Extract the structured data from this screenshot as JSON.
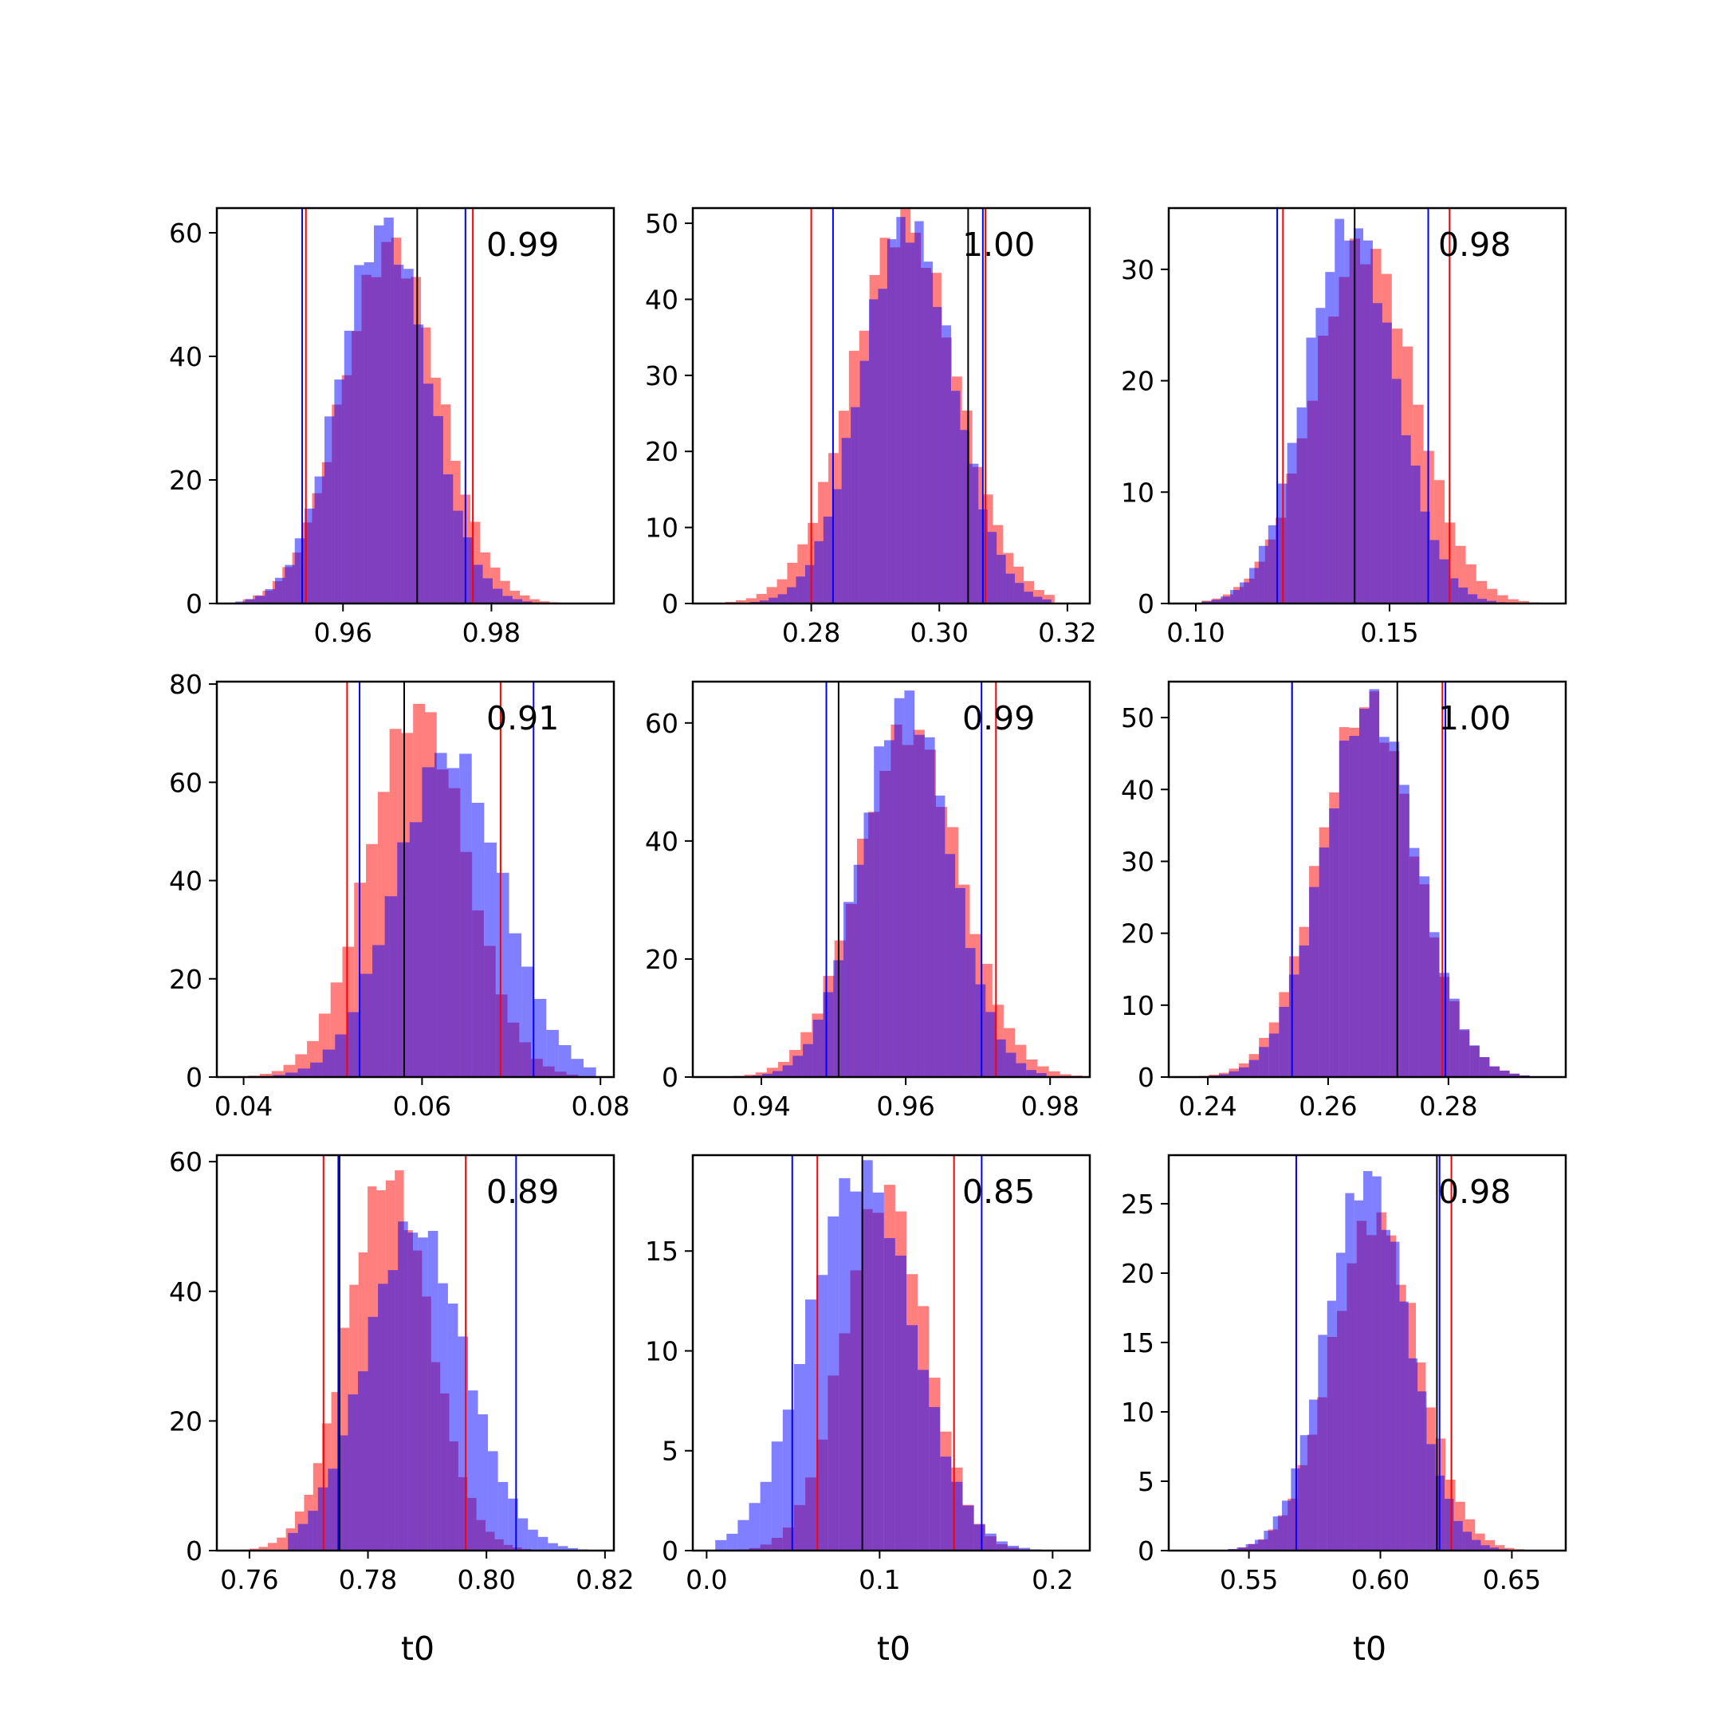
{
  "chart_data": {
    "type": "grid",
    "layout": {
      "rows": 3,
      "cols": 3
    },
    "xlabel": "t0",
    "colors": {
      "series_red": "#ff0000",
      "series_blue": "#0000ff",
      "overlap": "#7f3fbf",
      "truth": "#000000",
      "axes": "#000000"
    },
    "panels": [
      {
        "type": "histogram",
        "annotation": "0.99",
        "xlim": [
          0.943,
          0.9965
        ],
        "ylim": [
          0,
          64
        ],
        "xticks": [
          0.96,
          0.98
        ],
        "xtick_labels": [
          "0.96",
          "0.98"
        ],
        "yticks": [
          0,
          20,
          40,
          60
        ],
        "ytick_labels": [
          "0",
          "20",
          "40",
          "60"
        ],
        "vlines": {
          "red": [
            0.955,
            0.9775
          ],
          "blue": [
            0.9545,
            0.9765
          ],
          "black": [
            0.97
          ]
        },
        "series": [
          {
            "name": "red",
            "color": "#ff0000",
            "mean": 0.9665,
            "sd": 0.0065,
            "peak": 58,
            "bins": [
              0.9465,
              0.9905,
              33
            ]
          },
          {
            "name": "blue",
            "color": "#0000ff",
            "mean": 0.9655,
            "sd": 0.006,
            "peak": 61,
            "bins": [
              0.9455,
              0.9895,
              33
            ]
          }
        ]
      },
      {
        "type": "histogram",
        "annotation": "1.00",
        "xlim": [
          0.2615,
          0.3235
        ],
        "ylim": [
          0,
          52
        ],
        "xticks": [
          0.28,
          0.3,
          0.32
        ],
        "xtick_labels": [
          "0.28",
          "0.30",
          "0.32"
        ],
        "yticks": [
          0,
          10,
          20,
          30,
          40,
          50
        ],
        "ytick_labels": [
          "0",
          "10",
          "20",
          "30",
          "40",
          "50"
        ],
        "vlines": {
          "red": [
            0.28,
            0.3072
          ],
          "blue": [
            0.2834,
            0.3068
          ],
          "black": [
            0.3045
          ]
        },
        "series": [
          {
            "name": "red",
            "color": "#ff0000",
            "mean": 0.2945,
            "sd": 0.0082,
            "peak": 50,
            "bins": [
              0.265,
              0.318,
              33
            ]
          },
          {
            "name": "blue",
            "color": "#0000ff",
            "mean": 0.295,
            "sd": 0.0072,
            "peak": 50,
            "bins": [
              0.2705,
              0.3175,
              33
            ]
          }
        ]
      },
      {
        "type": "histogram",
        "annotation": "0.98",
        "xlim": [
          0.093,
          0.1955
        ],
        "ylim": [
          0,
          35.5
        ],
        "xticks": [
          0.1,
          0.15
        ],
        "xtick_labels": [
          "0.10",
          "0.15"
        ],
        "yticks": [
          0,
          10,
          20,
          30
        ],
        "ytick_labels": [
          "0",
          "10",
          "20",
          "30"
        ],
        "vlines": {
          "red": [
            0.1225,
            0.1655
          ],
          "blue": [
            0.121,
            0.16
          ],
          "black": [
            0.141
          ]
        },
        "series": [
          {
            "name": "red",
            "color": "#ff0000",
            "mean": 0.1435,
            "sd": 0.013,
            "peak": 32,
            "bins": [
              0.1015,
              0.1915,
              33
            ]
          },
          {
            "name": "blue",
            "color": "#0000ff",
            "mean": 0.14,
            "sd": 0.0115,
            "peak": 34,
            "bins": [
              0.1015,
              0.1825,
              33
            ]
          }
        ]
      },
      {
        "type": "histogram",
        "annotation": "0.91",
        "xlim": [
          0.037,
          0.0815
        ],
        "ylim": [
          0,
          80.5
        ],
        "xticks": [
          0.04,
          0.06,
          0.08
        ],
        "xtick_labels": [
          "0.04",
          "0.06",
          "0.08"
        ],
        "yticks": [
          0,
          20,
          40,
          60,
          80
        ],
        "ytick_labels": [
          "0",
          "20",
          "40",
          "60",
          "80"
        ],
        "vlines": {
          "red": [
            0.0516,
            0.0688
          ],
          "blue": [
            0.053,
            0.0725
          ],
          "black": [
            0.058
          ]
        },
        "series": [
          {
            "name": "red",
            "color": "#ff0000",
            "mean": 0.0595,
            "sd": 0.0055,
            "peak": 75,
            "bins": [
              0.0405,
              0.0775,
              28
            ]
          },
          {
            "name": "blue",
            "color": "#0000ff",
            "mean": 0.063,
            "sd": 0.006,
            "peak": 66,
            "bins": [
              0.0405,
              0.0795,
              28
            ]
          }
        ]
      },
      {
        "type": "histogram",
        "annotation": "0.99",
        "xlim": [
          0.9305,
          0.9855
        ],
        "ylim": [
          0,
          67
        ],
        "xticks": [
          0.94,
          0.96,
          0.98
        ],
        "xtick_labels": [
          "0.94",
          "0.96",
          "0.98"
        ],
        "yticks": [
          0,
          20,
          40,
          60
        ],
        "ytick_labels": [
          "0",
          "20",
          "40",
          "60"
        ],
        "vlines": {
          "red": [
            0.949,
            0.9725
          ],
          "blue": [
            0.949,
            0.9705
          ],
          "black": [
            0.9507
          ]
        },
        "series": [
          {
            "name": "red",
            "color": "#ff0000",
            "mean": 0.9605,
            "sd": 0.007,
            "peak": 59,
            "bins": [
              0.9345,
              0.9845,
              32
            ]
          },
          {
            "name": "blue",
            "color": "#0000ff",
            "mean": 0.96,
            "sd": 0.0062,
            "peak": 64,
            "bins": [
              0.9345,
              0.9795,
              32
            ]
          }
        ]
      },
      {
        "type": "histogram",
        "annotation": "1.00",
        "xlim": [
          0.2335,
          0.2995
        ],
        "ylim": [
          0,
          55
        ],
        "xticks": [
          0.24,
          0.26,
          0.28
        ],
        "xtick_labels": [
          "0.24",
          "0.26",
          "0.28"
        ],
        "yticks": [
          0,
          10,
          20,
          30,
          40,
          50
        ],
        "ytick_labels": [
          "0",
          "10",
          "20",
          "30",
          "40",
          "50"
        ],
        "vlines": {
          "red": [
            0.254,
            0.279
          ],
          "blue": [
            0.254,
            0.2795
          ],
          "black": [
            0.2715
          ]
        },
        "series": [
          {
            "name": "red",
            "color": "#ff0000",
            "mean": 0.2665,
            "sd": 0.008,
            "peak": 52,
            "bins": [
              0.2385,
              0.2935,
              33
            ]
          },
          {
            "name": "blue",
            "color": "#0000ff",
            "mean": 0.267,
            "sd": 0.0078,
            "peak": 52,
            "bins": [
              0.2385,
              0.2935,
              33
            ]
          }
        ]
      },
      {
        "type": "histogram",
        "annotation": "0.89",
        "xlim": [
          0.7545,
          0.8215
        ],
        "ylim": [
          0,
          61
        ],
        "xticks": [
          0.76,
          0.78,
          0.8,
          0.82
        ],
        "xtick_labels": [
          "0.76",
          "0.78",
          "0.80",
          "0.82"
        ],
        "yticks": [
          0,
          20,
          40,
          60
        ],
        "ytick_labels": [
          "0",
          "20",
          "40",
          "60"
        ],
        "vlines": {
          "red": [
            0.7725,
            0.7965
          ],
          "blue": [
            0.775,
            0.805
          ],
          "black": [
            0.7752
          ]
        },
        "series": [
          {
            "name": "red",
            "color": "#ff0000",
            "mean": 0.7835,
            "sd": 0.007,
            "peak": 58,
            "bins": [
              0.7585,
              0.8075,
              32
            ]
          },
          {
            "name": "blue",
            "color": "#0000ff",
            "mean": 0.788,
            "sd": 0.0085,
            "peak": 50,
            "bins": [
              0.7665,
              0.8205,
              32
            ]
          }
        ]
      },
      {
        "type": "histogram",
        "annotation": "0.85",
        "xlim": [
          -0.008,
          0.2215
        ],
        "ylim": [
          0,
          19.8
        ],
        "xticks": [
          0.0,
          0.1,
          0.2
        ],
        "xtick_labels": [
          "0.0",
          "0.1",
          "0.2"
        ],
        "yticks": [
          0,
          5,
          10,
          15
        ],
        "ytick_labels": [
          "0",
          "5",
          "10",
          "15"
        ],
        "vlines": {
          "red": [
            0.064,
            0.143
          ],
          "blue": [
            0.0495,
            0.159
          ],
          "black": [
            0.09
          ]
        },
        "series": [
          {
            "name": "red",
            "color": "#ff0000",
            "mean": 0.103,
            "sd": 0.024,
            "peak": 18,
            "bins": [
              0.005,
              0.2,
              30
            ]
          },
          {
            "name": "blue",
            "color": "#0000ff",
            "mean": 0.089,
            "sd": 0.03,
            "peak": 19,
            "bins": [
              0.005,
              0.2,
              30
            ]
          }
        ]
      },
      {
        "type": "histogram",
        "annotation": "0.98",
        "xlim": [
          0.5195,
          0.6705
        ],
        "ylim": [
          0,
          28.5
        ],
        "xticks": [
          0.55,
          0.6,
          0.65
        ],
        "xtick_labels": [
          "0.55",
          "0.60",
          "0.65"
        ],
        "yticks": [
          0,
          5,
          10,
          15,
          20,
          25
        ],
        "ytick_labels": [
          "0",
          "5",
          "10",
          "15",
          "20",
          "25"
        ],
        "vlines": {
          "red": [
            0.568,
            0.627
          ],
          "blue": [
            0.568,
            0.6225
          ],
          "black": [
            0.6215
          ]
        },
        "series": [
          {
            "name": "red",
            "color": "#ff0000",
            "mean": 0.598,
            "sd": 0.0165,
            "peak": 24,
            "bins": [
              0.5385,
              0.6585,
              32
            ]
          },
          {
            "name": "blue",
            "color": "#0000ff",
            "mean": 0.595,
            "sd": 0.0155,
            "peak": 27,
            "bins": [
              0.5385,
              0.6485,
              32
            ]
          }
        ]
      }
    ]
  }
}
